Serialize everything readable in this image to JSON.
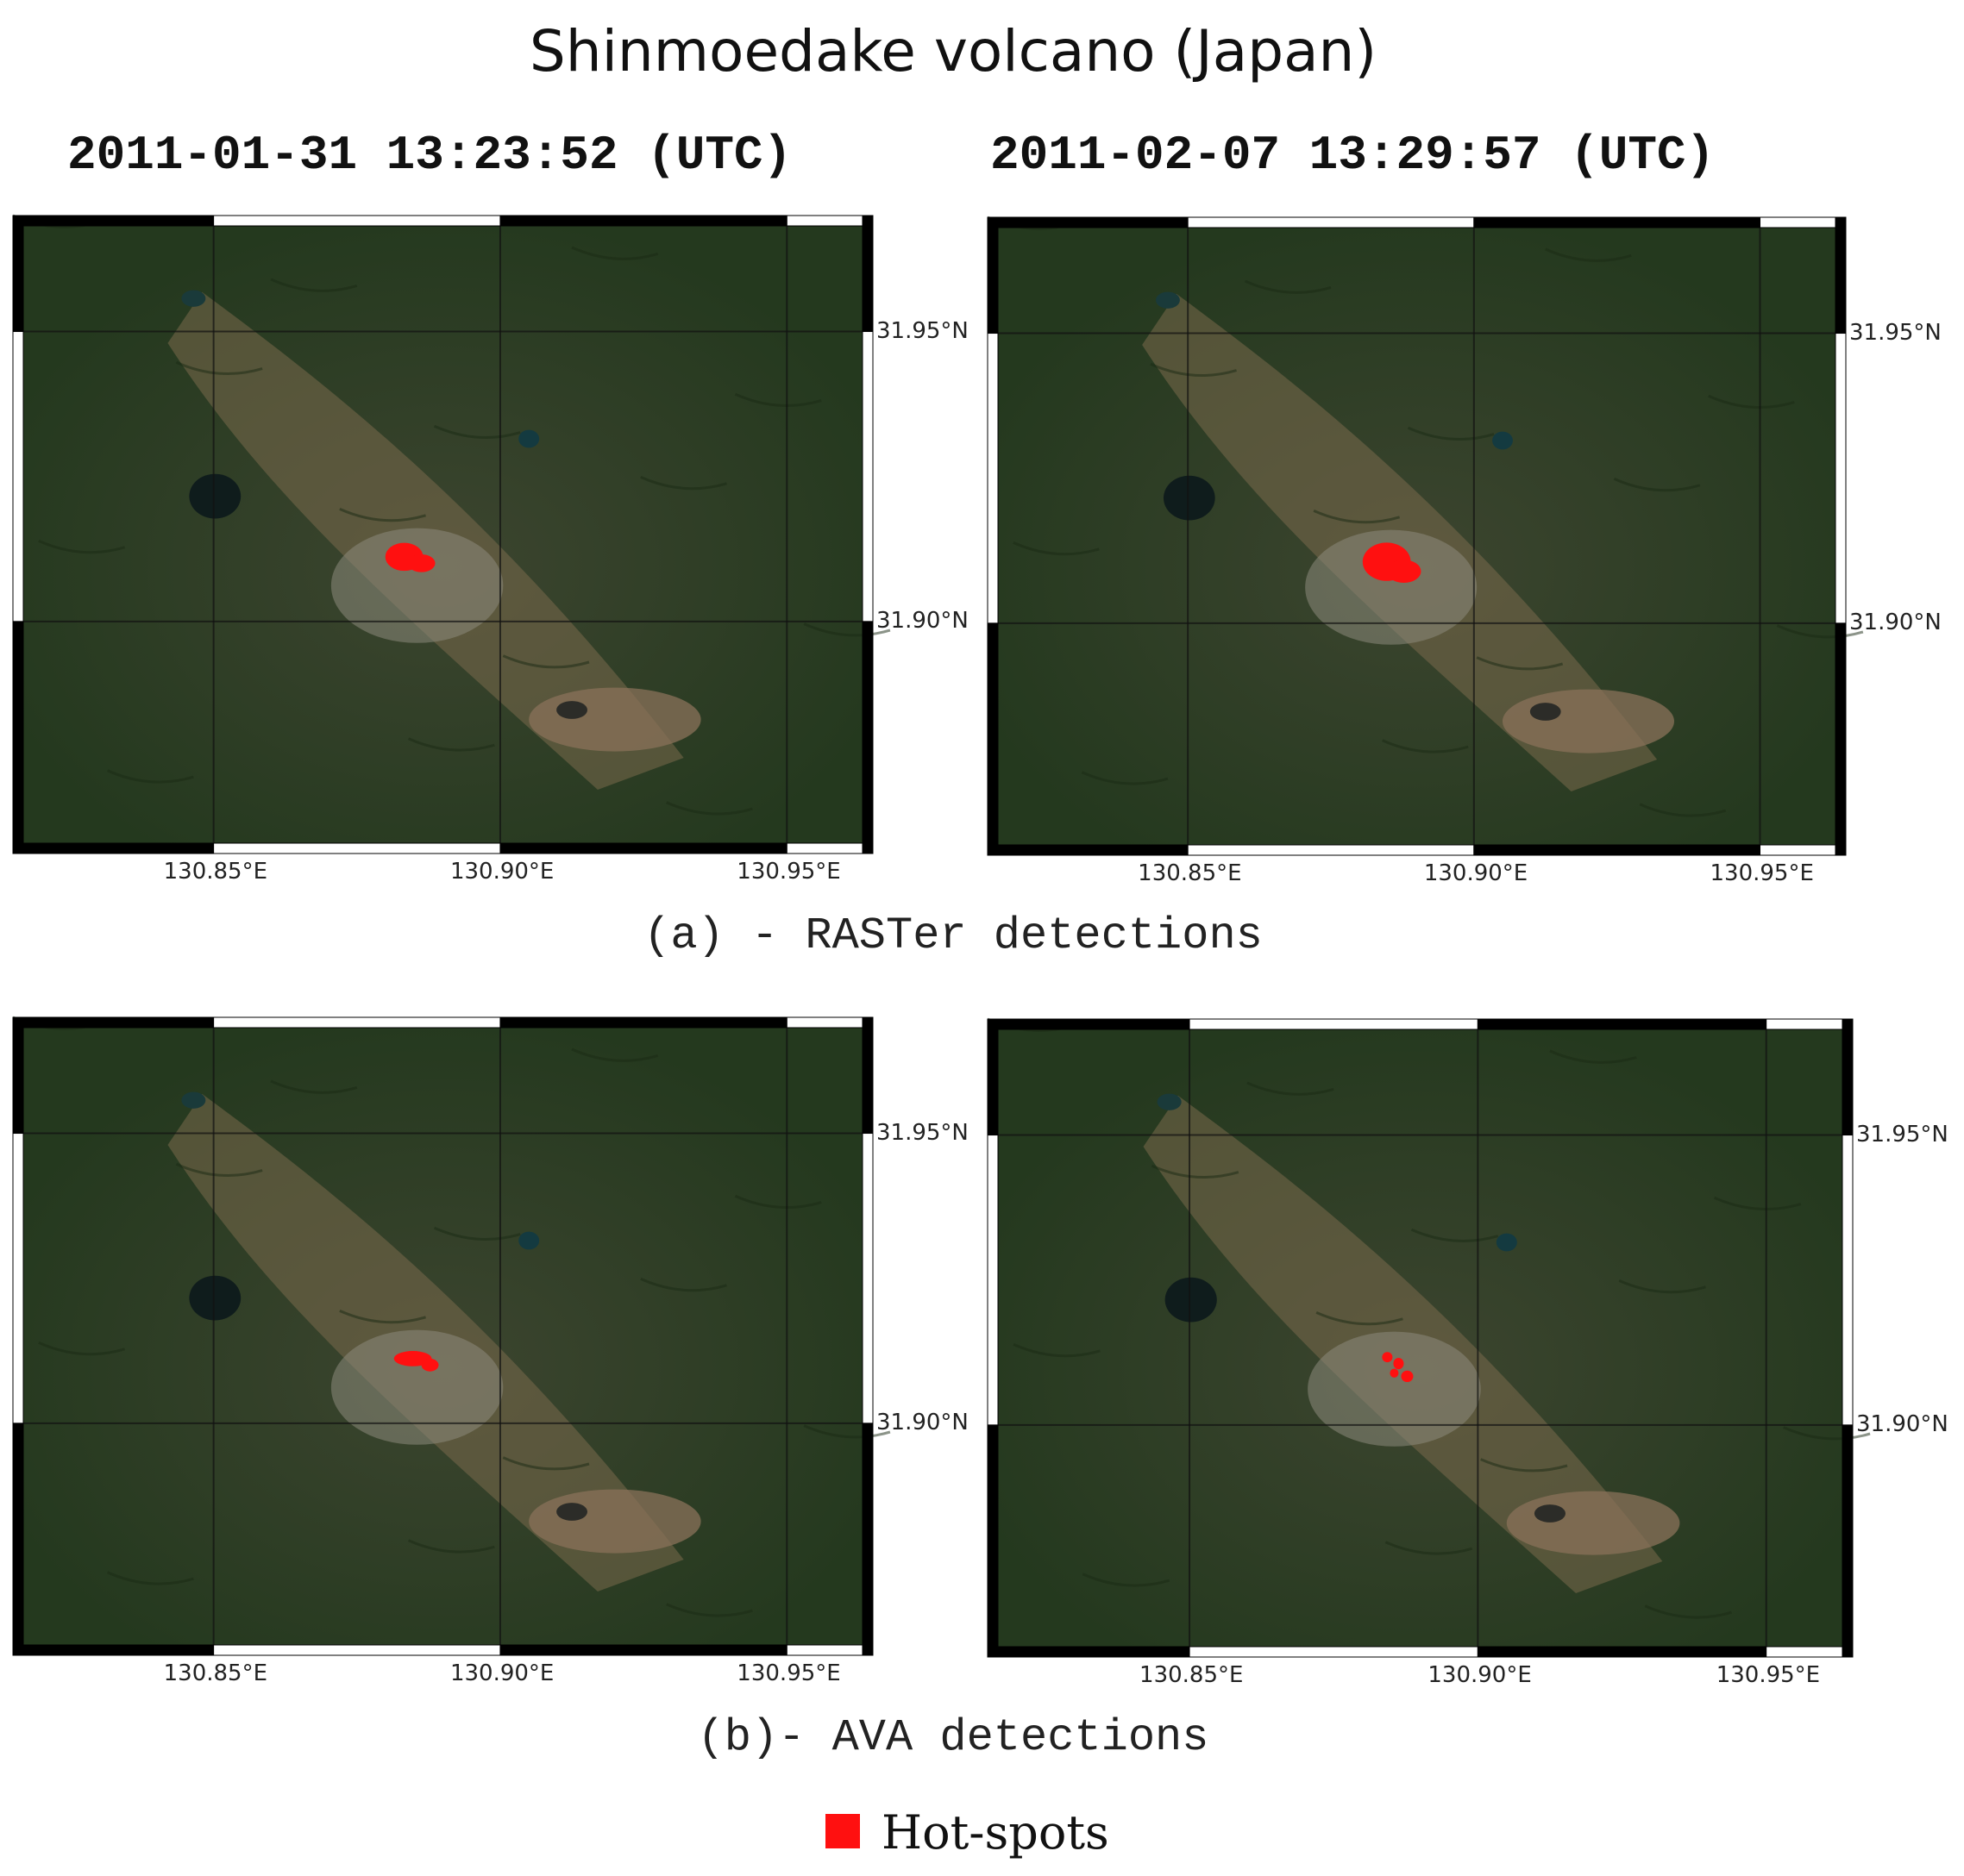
{
  "title": "Shinmoedake volcano (Japan)",
  "timestamps": [
    "2011-01-31 13:23:52 (UTC)",
    "2011-02-07 13:29:57 (UTC)"
  ],
  "captions": [
    "(a) - RASTer detections",
    "(b)- AVA detections"
  ],
  "legend": {
    "label": "Hot-spots",
    "color": "#ff1010"
  },
  "map_extent": {
    "lon": [
      130.815,
      130.965
    ],
    "lat": [
      31.86,
      31.97
    ]
  },
  "lon_ticks": [
    "130.85°E",
    "130.90°E",
    "130.95°E"
  ],
  "lat_ticks": [
    "31.95°N",
    "31.90°N"
  ],
  "maps": [
    {
      "panel": "a",
      "date": "2011-01-31 13:23:52 (UTC)",
      "hotspot": "compact patch at crater"
    },
    {
      "panel": "a",
      "date": "2011-02-07 13:29:57 (UTC)",
      "hotspot": "larger patch at crater"
    },
    {
      "panel": "b",
      "date": "2011-01-31 13:23:52 (UTC)",
      "hotspot": "elongated patch at crater"
    },
    {
      "panel": "b",
      "date": "2011-02-07 13:29:57 (UTC)",
      "hotspot": "scattered pixels at crater"
    }
  ]
}
